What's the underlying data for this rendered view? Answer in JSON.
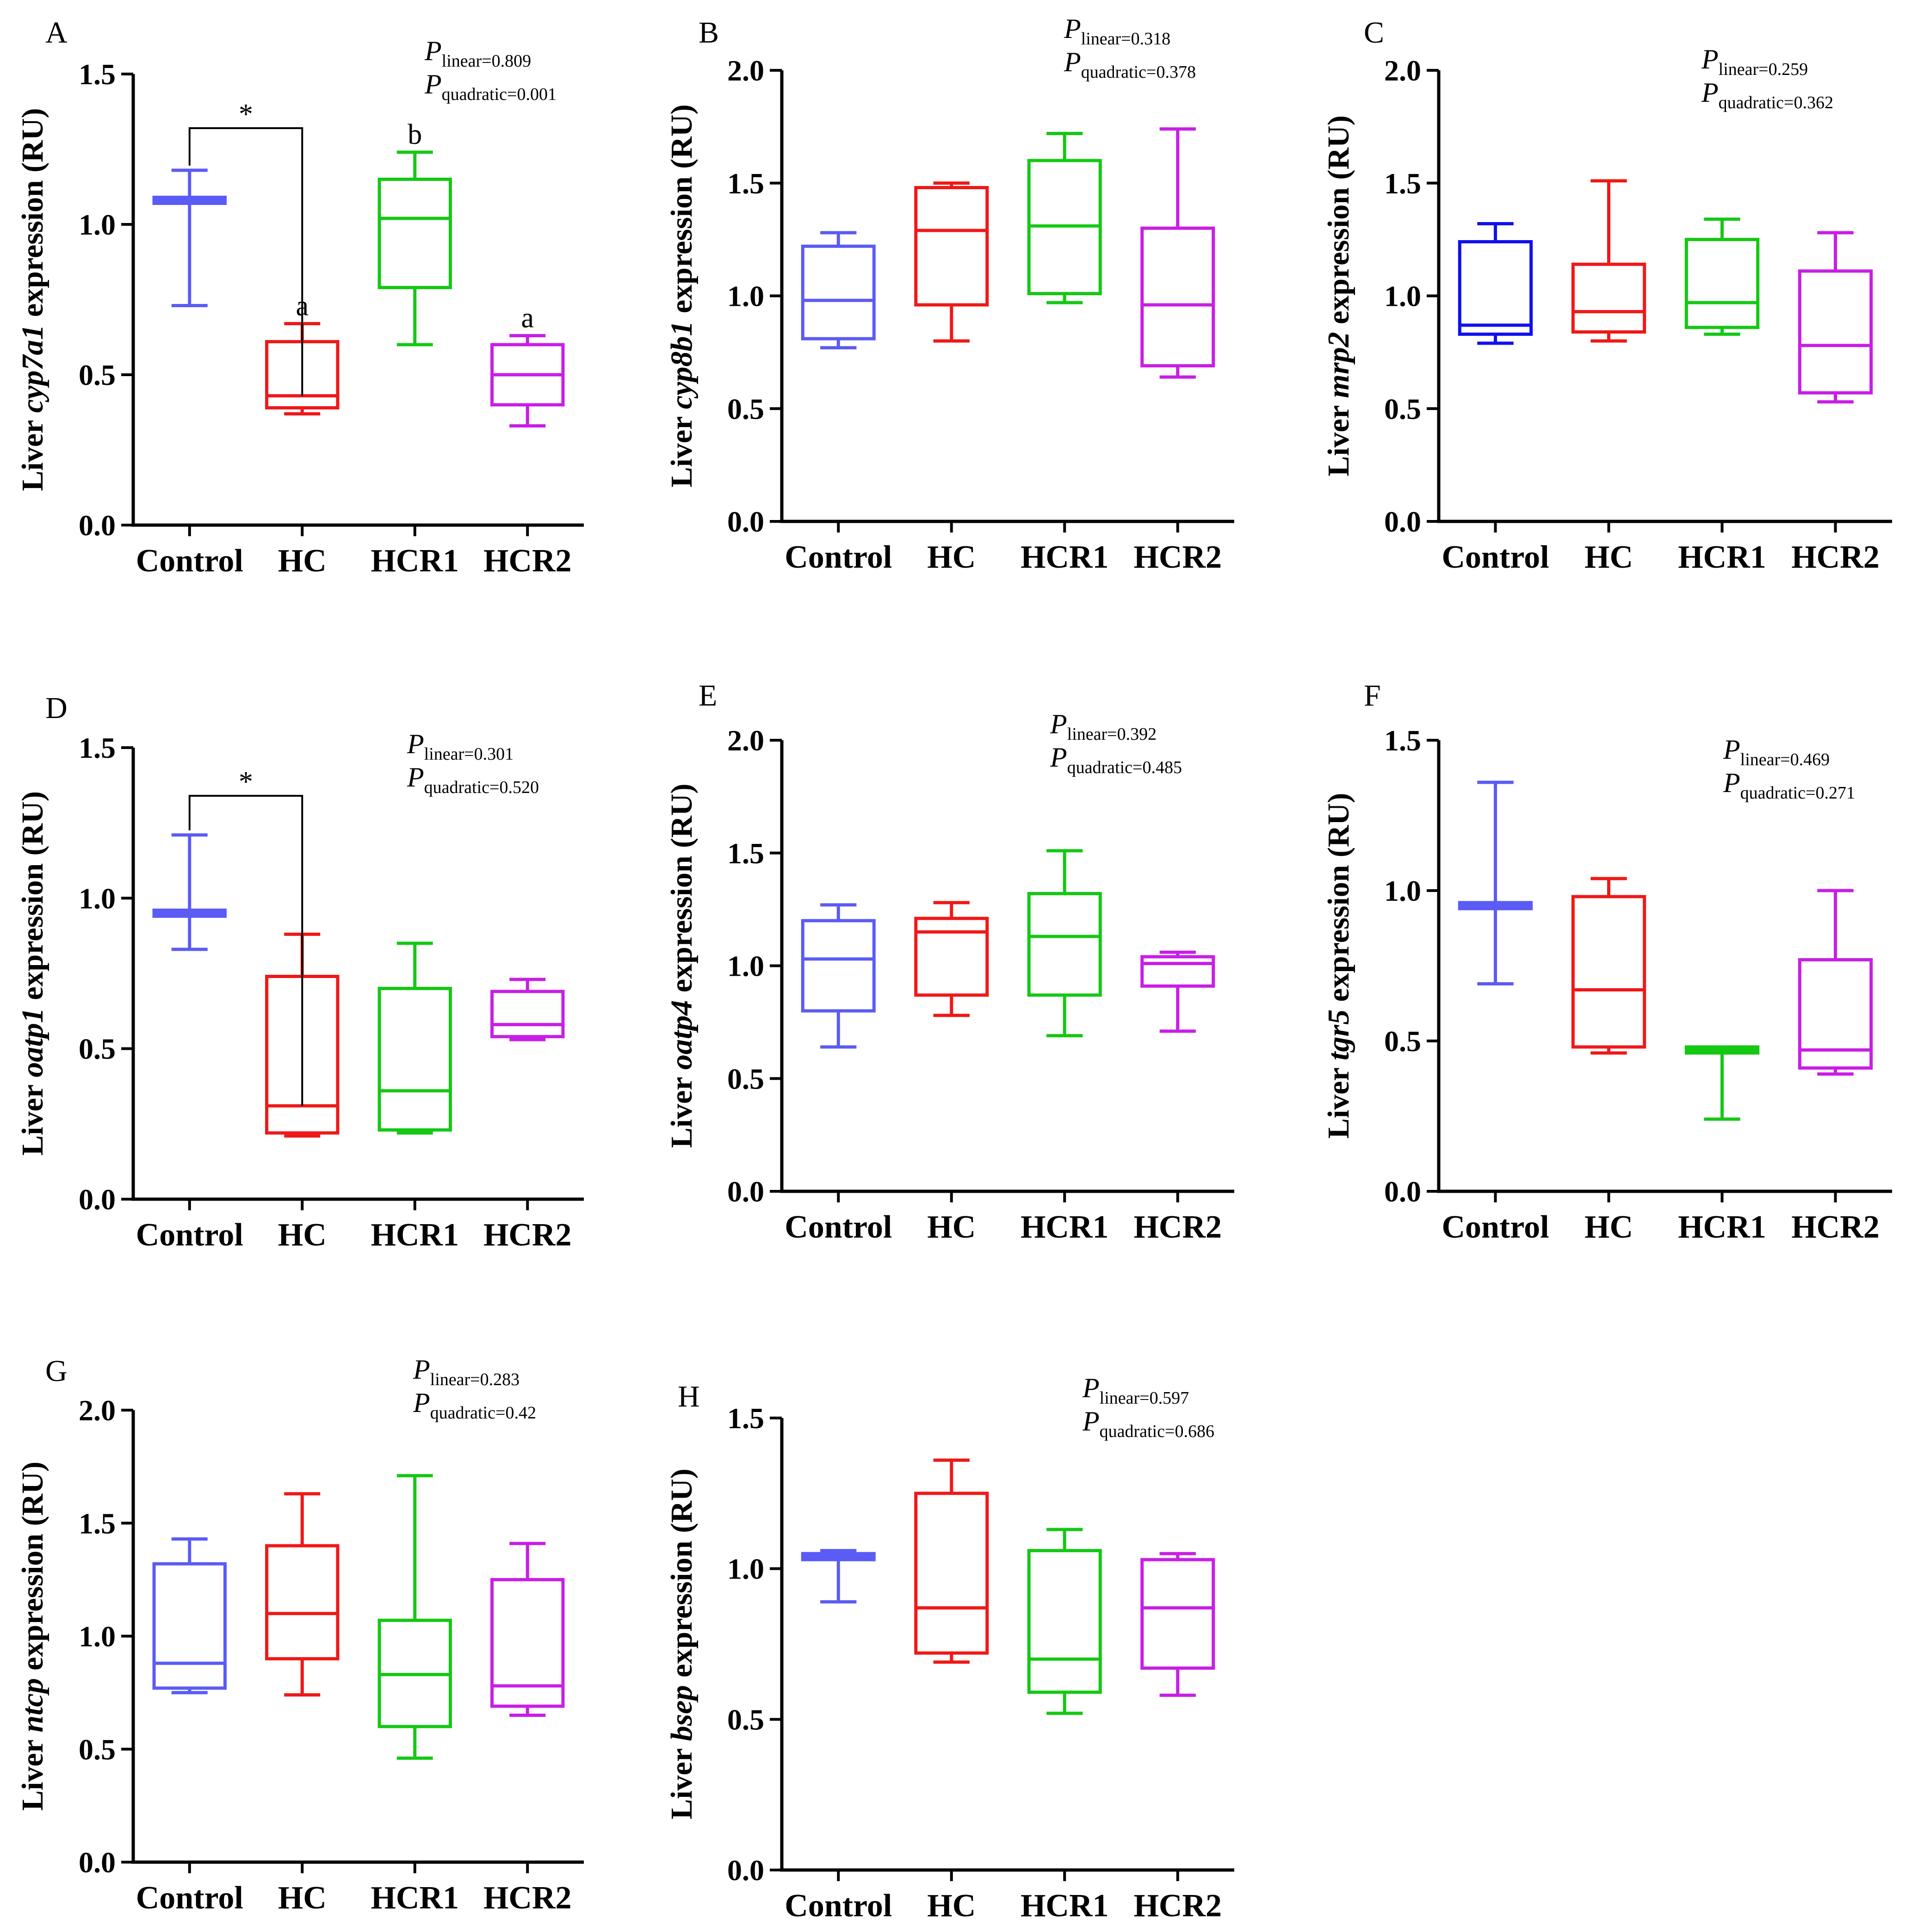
{
  "colors": {
    "Control": "#5b5bf5",
    "Control_mrp2": "#1010ee",
    "HC": "#f01818",
    "HCR1": "#14c814",
    "HCR2": "#c81ee6",
    "axis": "#000000"
  },
  "chart_data": [
    {
      "type": "box",
      "panel": "A",
      "gene": "cyp7a1",
      "ylabel_prefix": "Liver ",
      "ylabel_suffix": " expression (RU)",
      "ylim": [
        0,
        1.5
      ],
      "yticks": [
        0.0,
        0.5,
        1.0,
        1.5
      ],
      "ytick_labels": [
        "0.0",
        "0.5",
        "1.0",
        "1.5"
      ],
      "categories": [
        "Control",
        "HC",
        "HCR1",
        "HCR2"
      ],
      "boxes": [
        {
          "group": "Control",
          "min": 0.73,
          "q1": 1.07,
          "median": 1.08,
          "q3": 1.09,
          "max": 1.18
        },
        {
          "group": "HC",
          "min": 0.37,
          "q1": 0.39,
          "median": 0.43,
          "q3": 0.61,
          "max": 0.67
        },
        {
          "group": "HCR1",
          "min": 0.6,
          "q1": 0.79,
          "median": 1.02,
          "q3": 1.15,
          "max": 1.24
        },
        {
          "group": "HCR2",
          "min": 0.33,
          "q1": 0.4,
          "median": 0.5,
          "q3": 0.6,
          "max": 0.63
        }
      ],
      "letters": [
        {
          "group": "HC",
          "text": "a"
        },
        {
          "group": "HCR1",
          "text": "b"
        },
        {
          "group": "HCR2",
          "text": "a"
        }
      ],
      "bracket": {
        "from": "Control",
        "to": "HC",
        "text": "*",
        "y": 1.32
      },
      "p_main": "P",
      "p_linear_sub": "linear",
      "p_linear": "=0.809",
      "p_quadratic_sub": "quadratic",
      "p_quadratic": "=0.001"
    },
    {
      "type": "box",
      "panel": "B",
      "gene": "cyp8b1",
      "ylabel_prefix": "Liver ",
      "ylabel_suffix": " expression (RU)",
      "ylim": [
        0,
        2.0
      ],
      "yticks": [
        0.0,
        0.5,
        1.0,
        1.5,
        2.0
      ],
      "ytick_labels": [
        "0.0",
        "0.5",
        "1.0",
        "1.5",
        "2.0"
      ],
      "categories": [
        "Control",
        "HC",
        "HCR1",
        "HCR2"
      ],
      "boxes": [
        {
          "group": "Control",
          "min": 0.77,
          "q1": 0.81,
          "median": 0.98,
          "q3": 1.22,
          "max": 1.28
        },
        {
          "group": "HC",
          "min": 0.8,
          "q1": 0.96,
          "median": 1.29,
          "q3": 1.48,
          "max": 1.5
        },
        {
          "group": "HCR1",
          "min": 0.97,
          "q1": 1.01,
          "median": 1.31,
          "q3": 1.6,
          "max": 1.72
        },
        {
          "group": "HCR2",
          "min": 0.64,
          "q1": 0.69,
          "median": 0.96,
          "q3": 1.3,
          "max": 1.74
        }
      ],
      "p_main": "P",
      "p_linear_sub": "linear",
      "p_linear": "=0.318",
      "p_quadratic_sub": "quadratic",
      "p_quadratic": "=0.378"
    },
    {
      "type": "box",
      "panel": "C",
      "gene": "mrp2",
      "ylabel_prefix": "Liver ",
      "ylabel_suffix": " expression (RU)",
      "ylim": [
        0,
        2.0
      ],
      "yticks": [
        0.0,
        0.5,
        1.0,
        1.5,
        2.0
      ],
      "ytick_labels": [
        "0.0",
        "0.5",
        "1.0",
        "1.5",
        "2.0"
      ],
      "categories": [
        "Control",
        "HC",
        "HCR1",
        "HCR2"
      ],
      "boxes": [
        {
          "group": "Control",
          "min": 0.79,
          "q1": 0.83,
          "median": 0.87,
          "q3": 1.24,
          "max": 1.32
        },
        {
          "group": "HC",
          "min": 0.8,
          "q1": 0.84,
          "median": 0.93,
          "q3": 1.14,
          "max": 1.51
        },
        {
          "group": "HCR1",
          "min": 0.83,
          "q1": 0.86,
          "median": 0.97,
          "q3": 1.25,
          "max": 1.34
        },
        {
          "group": "HCR2",
          "min": 0.53,
          "q1": 0.57,
          "median": 0.78,
          "q3": 1.11,
          "max": 1.28
        }
      ],
      "p_main": "P",
      "p_linear_sub": "linear",
      "p_linear": "=0.259",
      "p_quadratic_sub": "quadratic",
      "p_quadratic": "=0.362"
    },
    {
      "type": "box",
      "panel": "D",
      "gene": "oatp1",
      "ylabel_prefix": "Liver ",
      "ylabel_suffix": " expression (RU)",
      "ylim": [
        0,
        1.5
      ],
      "yticks": [
        0.0,
        0.5,
        1.0,
        1.5
      ],
      "ytick_labels": [
        "0.0",
        "0.5",
        "1.0",
        "1.5"
      ],
      "categories": [
        "Control",
        "HC",
        "HCR1",
        "HCR2"
      ],
      "boxes": [
        {
          "group": "Control",
          "min": 0.83,
          "q1": 0.94,
          "median": 0.95,
          "q3": 0.96,
          "max": 1.21
        },
        {
          "group": "HC",
          "min": 0.21,
          "q1": 0.22,
          "median": 0.31,
          "q3": 0.74,
          "max": 0.88
        },
        {
          "group": "HCR1",
          "min": 0.22,
          "q1": 0.23,
          "median": 0.36,
          "q3": 0.7,
          "max": 0.85
        },
        {
          "group": "HCR2",
          "min": 0.53,
          "q1": 0.54,
          "median": 0.58,
          "q3": 0.69,
          "max": 0.73
        }
      ],
      "bracket": {
        "from": "Control",
        "to": "HC",
        "text": "*",
        "y": 1.34
      },
      "p_main": "P",
      "p_linear_sub": "linear",
      "p_linear": "=0.301",
      "p_quadratic_sub": "quadratic",
      "p_quadratic": "=0.520"
    },
    {
      "type": "box",
      "panel": "E",
      "gene": "oatp4",
      "ylabel_prefix": "Liver ",
      "ylabel_suffix": " expression (RU)",
      "ylim": [
        0,
        2.0
      ],
      "yticks": [
        0.0,
        0.5,
        1.0,
        1.5,
        2.0
      ],
      "ytick_labels": [
        "0.0",
        "0.5",
        "1.0",
        "1.5",
        "2.0"
      ],
      "categories": [
        "Control",
        "HC",
        "HCR1",
        "HCR2"
      ],
      "boxes": [
        {
          "group": "Control",
          "min": 0.64,
          "q1": 0.8,
          "median": 1.03,
          "q3": 1.2,
          "max": 1.27
        },
        {
          "group": "HC",
          "min": 0.78,
          "q1": 0.87,
          "median": 1.15,
          "q3": 1.21,
          "max": 1.28
        },
        {
          "group": "HCR1",
          "min": 0.69,
          "q1": 0.87,
          "median": 1.13,
          "q3": 1.32,
          "max": 1.51
        },
        {
          "group": "HCR2",
          "min": 0.71,
          "q1": 0.91,
          "median": 1.01,
          "q3": 1.04,
          "max": 1.06
        }
      ],
      "p_main": "P",
      "p_linear_sub": "linear",
      "p_linear": "=0.392",
      "p_quadratic_sub": "quadratic",
      "p_quadratic": "=0.485"
    },
    {
      "type": "box",
      "panel": "F",
      "gene": "tgr5",
      "ylabel_prefix": "Liver ",
      "ylabel_suffix": " expression (RU)",
      "ylim": [
        0,
        1.5
      ],
      "yticks": [
        0.0,
        0.5,
        1.0,
        1.5
      ],
      "ytick_labels": [
        "0.0",
        "0.5",
        "1.0",
        "1.5"
      ],
      "categories": [
        "Control",
        "HC",
        "HCR1",
        "HCR2"
      ],
      "boxes": [
        {
          "group": "Control",
          "min": 0.69,
          "q1": 0.94,
          "median": 0.95,
          "q3": 0.96,
          "max": 1.36
        },
        {
          "group": "HC",
          "min": 0.46,
          "q1": 0.48,
          "median": 0.67,
          "q3": 0.98,
          "max": 1.04
        },
        {
          "group": "HCR1",
          "min": 0.24,
          "q1": 0.46,
          "median": 0.47,
          "q3": 0.48,
          "max": 0.48
        },
        {
          "group": "HCR2",
          "min": 0.39,
          "q1": 0.41,
          "median": 0.47,
          "q3": 0.77,
          "max": 1.0
        }
      ],
      "p_main": "P",
      "p_linear_sub": "linear",
      "p_linear": "=0.469",
      "p_quadratic_sub": "quadratic",
      "p_quadratic": "=0.271"
    },
    {
      "type": "box",
      "panel": "G",
      "gene": "ntcp",
      "ylabel_prefix": "Liver ",
      "ylabel_suffix": " expression (RU)",
      "ylim": [
        0,
        2.0
      ],
      "yticks": [
        0.0,
        0.5,
        1.0,
        1.5,
        2.0
      ],
      "ytick_labels": [
        "0.0",
        "0.5",
        "1.0",
        "1.5",
        "2.0"
      ],
      "categories": [
        "Control",
        "HC",
        "HCR1",
        "HCR2"
      ],
      "boxes": [
        {
          "group": "Control",
          "min": 0.75,
          "q1": 0.77,
          "median": 0.88,
          "q3": 1.32,
          "max": 1.43
        },
        {
          "group": "HC",
          "min": 0.74,
          "q1": 0.9,
          "median": 1.1,
          "q3": 1.4,
          "max": 1.63
        },
        {
          "group": "HCR1",
          "min": 0.46,
          "q1": 0.6,
          "median": 0.83,
          "q3": 1.07,
          "max": 1.71
        },
        {
          "group": "HCR2",
          "min": 0.65,
          "q1": 0.69,
          "median": 0.78,
          "q3": 1.25,
          "max": 1.41
        }
      ],
      "p_main": "P",
      "p_linear_sub": "linear",
      "p_linear": "=0.283",
      "p_quadratic_sub": "quadratic",
      "p_quadratic": "=0.42"
    },
    {
      "type": "box",
      "panel": "H",
      "gene": "bsep",
      "ylabel_prefix": "Liver ",
      "ylabel_suffix": " expression (RU)",
      "ylim": [
        0,
        1.5
      ],
      "yticks": [
        0.0,
        0.5,
        1.0,
        1.5
      ],
      "ytick_labels": [
        "0.0",
        "0.5",
        "1.0",
        "1.5"
      ],
      "categories": [
        "Control",
        "HC",
        "HCR1",
        "HCR2"
      ],
      "boxes": [
        {
          "group": "Control",
          "min": 0.89,
          "q1": 1.03,
          "median": 1.04,
          "q3": 1.05,
          "max": 1.06
        },
        {
          "group": "HC",
          "min": 0.69,
          "q1": 0.72,
          "median": 0.87,
          "q3": 1.25,
          "max": 1.36
        },
        {
          "group": "HCR1",
          "min": 0.52,
          "q1": 0.59,
          "median": 0.7,
          "q3": 1.06,
          "max": 1.13
        },
        {
          "group": "HCR2",
          "min": 0.58,
          "q1": 0.67,
          "median": 0.87,
          "q3": 1.03,
          "max": 1.05
        }
      ],
      "p_main": "P",
      "p_linear_sub": "linear",
      "p_linear": "=0.597",
      "p_quadratic_sub": "quadratic",
      "p_quadratic": "=0.686"
    }
  ]
}
